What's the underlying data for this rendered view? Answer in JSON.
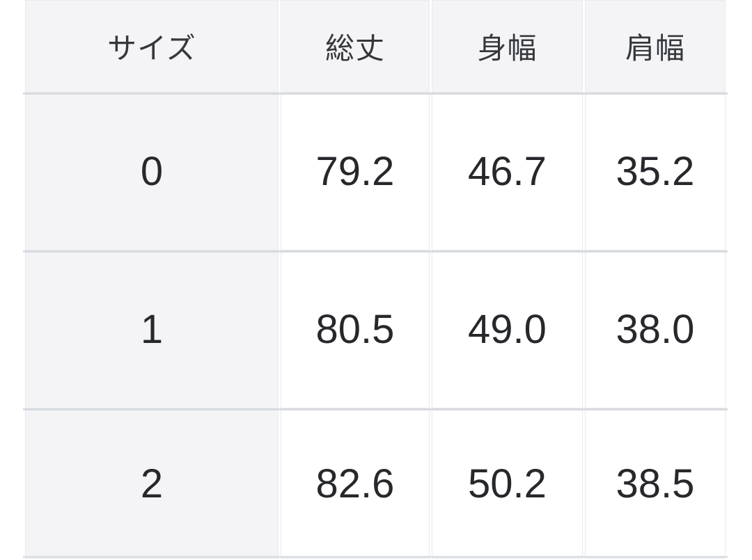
{
  "table": {
    "headers": [
      "サイズ",
      "総丈",
      "身幅",
      "肩幅"
    ],
    "rows": [
      {
        "label": "0",
        "values": [
          "79.2",
          "46.7",
          "35.2"
        ]
      },
      {
        "label": "1",
        "values": [
          "80.5",
          "49.0",
          "38.0"
        ]
      },
      {
        "label": "2",
        "values": [
          "82.6",
          "50.2",
          "38.5"
        ]
      }
    ]
  },
  "colors": {
    "header_bg": "#f4f4f6",
    "cell_bg": "#ffffff",
    "row_separator": "#d7dade",
    "cell_border": "#e8eaee",
    "header_text": "#34373c",
    "value_text": "#26282b",
    "page_bg": "#ffffff"
  },
  "chart_data": {
    "type": "table",
    "title": "",
    "columns": [
      "サイズ",
      "総丈",
      "身幅",
      "肩幅"
    ],
    "rows": [
      [
        "0",
        "79.2",
        "46.7",
        "35.2"
      ],
      [
        "1",
        "80.5",
        "49.0",
        "38.0"
      ],
      [
        "2",
        "82.6",
        "50.2",
        "38.5"
      ]
    ]
  }
}
